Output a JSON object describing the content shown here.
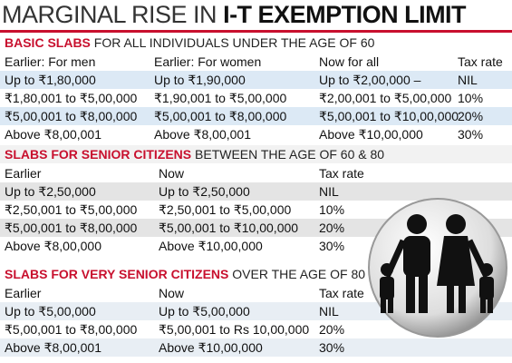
{
  "title": {
    "light": "MARGINAL RISE IN",
    "bold": "I-T EXEMPTION LIMIT"
  },
  "sections": [
    {
      "heading_bold": "BASIC SLABS",
      "heading_rest": "FOR ALL INDIVIDUALS UNDER THE AGE OF 60",
      "columns": [
        "Earlier: For men",
        "Earlier: For women",
        "Now for all",
        "Tax rate"
      ],
      "rows": [
        [
          "Up to ₹1,80,000",
          "Up to ₹1,90,000",
          "Up to ₹2,00,000 –",
          "NIL"
        ],
        [
          "₹1,80,001 to ₹5,00,000",
          "₹1,90,001 to ₹5,00,000",
          "₹2,00,001 to ₹5,00,000",
          "10%"
        ],
        [
          "₹5,00,001 to ₹8,00,000",
          "₹5,00,001 to ₹8,00,000",
          "₹5,00,001 to ₹10,00,000",
          "20%"
        ],
        [
          "Above ₹8,00,001",
          "Above ₹8,00,001",
          "Above ₹10,00,000",
          "30%"
        ]
      ]
    },
    {
      "heading_bold": "SLABS FOR SENIOR CITIZENS",
      "heading_rest": "BETWEEN THE AGE OF 60 & 80",
      "columns": [
        "Earlier",
        "Now",
        "Tax rate"
      ],
      "rows": [
        [
          "Up to ₹2,50,000",
          "Up to ₹2,50,000",
          "NIL"
        ],
        [
          "₹2,50,001 to ₹5,00,000",
          "₹2,50,001 to ₹5,00,000",
          "10%"
        ],
        [
          "₹5,00,001 to ₹8,00,000",
          "₹5,00,001 to ₹10,00,000",
          "20%"
        ],
        [
          "Above ₹8,00,000",
          "Above ₹10,00,000",
          "30%"
        ]
      ]
    },
    {
      "heading_bold": "SLABS FOR VERY SENIOR CITIZENS",
      "heading_rest": "OVER THE AGE OF 80",
      "columns": [
        "Earlier",
        "Now",
        "Tax rate"
      ],
      "rows": [
        [
          "Up to ₹5,00,000",
          "Up to ₹5,00,000",
          "NIL"
        ],
        [
          "₹5,00,001 to ₹8,00,000",
          "₹5,00,001 to Rs 10,00,000",
          "20%"
        ],
        [
          "Above ₹8,00,001",
          "Above ₹10,00,000",
          "30%"
        ]
      ]
    }
  ]
}
